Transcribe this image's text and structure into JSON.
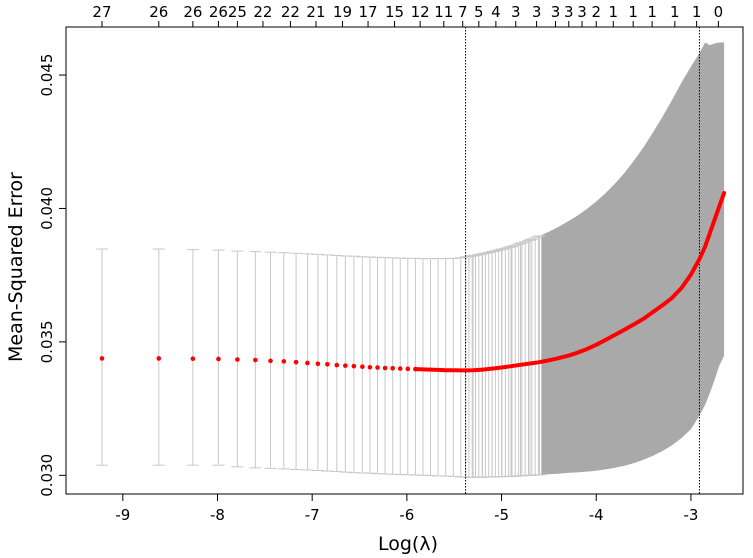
{
  "chart_data": {
    "type": "line",
    "xlabel": "Log(λ)",
    "ylabel": "Mean-Squared Error",
    "xlim": [
      -9.6,
      -2.45
    ],
    "ylim": [
      0.0293,
      0.0468
    ],
    "x_ticks": [
      -9,
      -8,
      -7,
      -6,
      -5,
      -4,
      -3
    ],
    "y_ticks": [
      0.03,
      0.035,
      0.04,
      0.045
    ],
    "y_tick_labels": [
      "0.030",
      "0.035",
      "0.040",
      "0.045"
    ],
    "top_axis": {
      "labels": [
        "27",
        "26",
        "26",
        "26",
        "25",
        "22",
        "22",
        "21",
        "19",
        "17",
        "15",
        "12",
        "11",
        "7",
        "5",
        "4",
        "3",
        "3",
        "3",
        "3",
        "3",
        "2",
        "1",
        "1",
        "1",
        "1",
        "1",
        "0"
      ],
      "x": [
        -9.22,
        -8.62,
        -8.26,
        -7.99,
        -7.79,
        -7.52,
        -7.23,
        -6.96,
        -6.68,
        -6.41,
        -6.13,
        -5.86,
        -5.61,
        -5.41,
        -5.24,
        -5.06,
        -4.85,
        -4.63,
        -4.43,
        -4.29,
        -4.15,
        -4.0,
        -3.82,
        -3.61,
        -3.41,
        -3.17,
        -2.94,
        -2.71
      ]
    },
    "vlines": [
      -5.38,
      -2.91
    ],
    "series": [
      {
        "x": [
          -9.22,
          -8.62,
          -8.26,
          -7.99,
          -7.79,
          -7.6,
          -7.44,
          -7.3,
          -7.17,
          -7.05,
          -6.94,
          -6.84,
          -6.74,
          -6.65,
          -6.56,
          -6.47,
          -6.39,
          -6.31,
          -6.23,
          -6.15,
          -6.07,
          -5.99,
          -5.91,
          -5.83,
          -5.75,
          -5.67,
          -5.59,
          -5.51,
          -5.43,
          -5.38,
          -5.3,
          -5.2,
          -5.1,
          -5.0,
          -4.9,
          -4.8,
          -4.7,
          -4.6,
          -4.5,
          -4.4,
          -4.3,
          -4.2,
          -4.1,
          -4.0,
          -3.9,
          -3.8,
          -3.7,
          -3.6,
          -3.5,
          -3.4,
          -3.3,
          -3.2,
          -3.1,
          -3.0,
          -2.91,
          -2.85,
          -2.8,
          -2.75,
          -2.7,
          -2.65
        ],
        "y": [
          0.03438,
          0.03438,
          0.03437,
          0.03436,
          0.03434,
          0.03432,
          0.03429,
          0.03427,
          0.03424,
          0.03421,
          0.03418,
          0.03416,
          0.03413,
          0.03411,
          0.03409,
          0.03407,
          0.03405,
          0.03404,
          0.03402,
          0.03401,
          0.034,
          0.03399,
          0.03398,
          0.03397,
          0.03396,
          0.03395,
          0.03394,
          0.03394,
          0.03393,
          0.03393,
          0.03394,
          0.03396,
          0.034,
          0.03404,
          0.03409,
          0.03414,
          0.03419,
          0.03424,
          0.03431,
          0.03439,
          0.03448,
          0.03459,
          0.03473,
          0.03489,
          0.03508,
          0.03527,
          0.03546,
          0.03566,
          0.03587,
          0.03612,
          0.03637,
          0.03665,
          0.03702,
          0.03752,
          0.0381,
          0.03857,
          0.03908,
          0.03958,
          0.04008,
          0.04058
        ],
        "lower": [
          0.03038,
          0.03038,
          0.03038,
          0.03038,
          0.03032,
          0.03028,
          0.03026,
          0.03024,
          0.03022,
          0.0302,
          0.03018,
          0.03016,
          0.03014,
          0.03012,
          0.0301,
          0.03009,
          0.03008,
          0.03006,
          0.03005,
          0.03004,
          0.03003,
          0.03002,
          0.03001,
          0.03,
          0.02999,
          0.02998,
          0.02997,
          0.02996,
          0.02994,
          0.02993,
          0.02993,
          0.02993,
          0.02994,
          0.02995,
          0.02996,
          0.02998,
          0.03,
          0.03002,
          0.03004,
          0.03006,
          0.03009,
          0.03011,
          0.03014,
          0.03017,
          0.03022,
          0.03028,
          0.03036,
          0.03046,
          0.03058,
          0.03073,
          0.03091,
          0.03113,
          0.0314,
          0.03173,
          0.03223,
          0.03264,
          0.03309,
          0.03358,
          0.03411,
          0.03448
        ],
        "upper": [
          0.03848,
          0.03848,
          0.03846,
          0.03844,
          0.0384,
          0.03838,
          0.03836,
          0.03834,
          0.03832,
          0.0383,
          0.03828,
          0.03826,
          0.03824,
          0.03822,
          0.03821,
          0.03819,
          0.03818,
          0.03817,
          0.03816,
          0.03815,
          0.03814,
          0.03813,
          0.03813,
          0.03812,
          0.03812,
          0.03812,
          0.03812,
          0.03813,
          0.03815,
          0.03818,
          0.03823,
          0.0383,
          0.03838,
          0.03847,
          0.03857,
          0.03869,
          0.03882,
          0.03897,
          0.03913,
          0.03931,
          0.03951,
          0.03973,
          0.03998,
          0.04026,
          0.04058,
          0.04094,
          0.04134,
          0.0418,
          0.0423,
          0.04285,
          0.04344,
          0.04406,
          0.04472,
          0.04531,
          0.04582,
          0.04622,
          0.04612,
          0.04618,
          0.04622,
          0.04622
        ]
      }
    ],
    "colors": {
      "mean": "#ff0000",
      "band": "#a9a9a9",
      "bars": "#c8c8c8",
      "vline": "#000000"
    },
    "grid": false
  }
}
